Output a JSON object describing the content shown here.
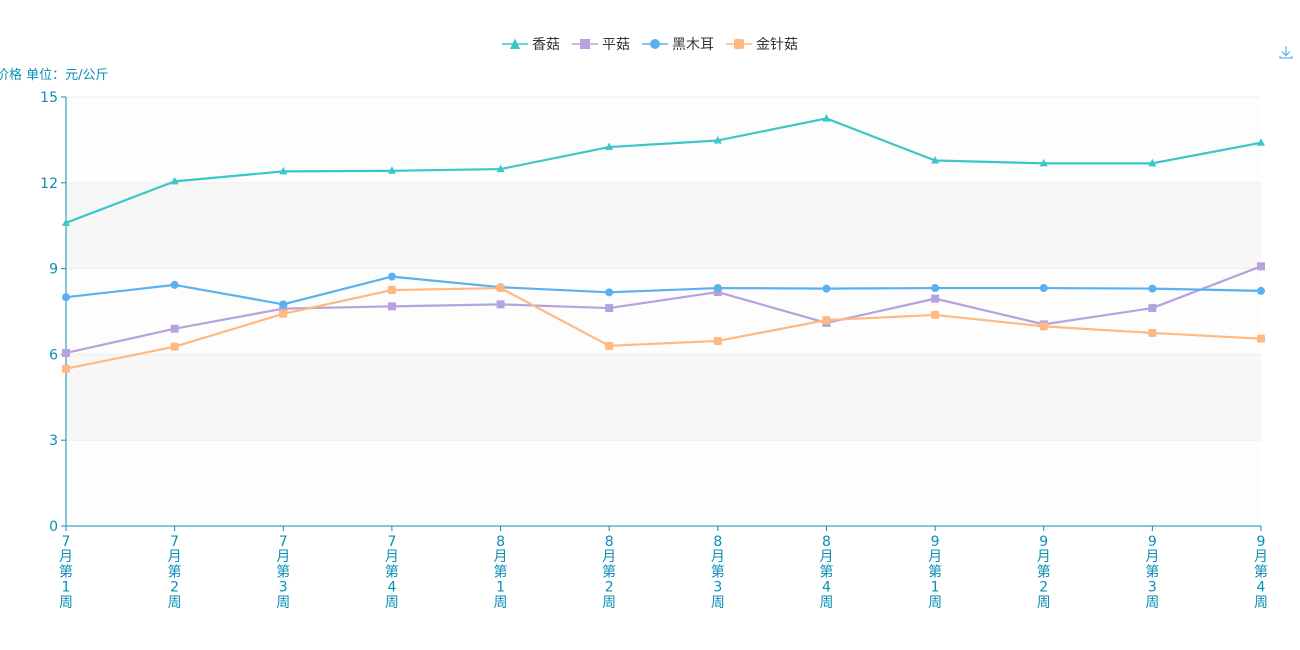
{
  "toolbox": {
    "download_icon": "download-icon"
  },
  "chart_data": {
    "type": "line",
    "ylabel": "价格 单位：元/公斤",
    "ylim": [
      0,
      15
    ],
    "yticks": [
      0,
      3,
      6,
      9,
      12,
      15
    ],
    "grid": true,
    "legend_position": "top-center",
    "categories": [
      "7月第1周",
      "7月第2周",
      "7月第3周",
      "7月第4周",
      "8月第1周",
      "8月第2周",
      "8月第3周",
      "8月第4周",
      "9月第1周",
      "9月第2周",
      "9月第3周",
      "9月第4周"
    ],
    "series": [
      {
        "name": "香菇",
        "color": "#3cc6c8",
        "marker": "triangle",
        "values": [
          10.6,
          12.05,
          12.4,
          12.42,
          12.48,
          13.25,
          13.48,
          14.25,
          12.78,
          12.68,
          12.68,
          13.4
        ]
      },
      {
        "name": "平菇",
        "color": "#b6a2de",
        "marker": "square",
        "values": [
          6.05,
          6.9,
          7.6,
          7.68,
          7.75,
          7.62,
          8.18,
          7.1,
          7.95,
          7.05,
          7.62,
          9.08
        ]
      },
      {
        "name": "黑木耳",
        "color": "#5ab1ef",
        "marker": "circle",
        "values": [
          8.0,
          8.43,
          7.75,
          8.72,
          8.35,
          8.17,
          8.32,
          8.3,
          8.32,
          8.32,
          8.3,
          8.22
        ]
      },
      {
        "name": "金针菇",
        "color": "#ffb980",
        "marker": "roundrect",
        "values": [
          5.5,
          6.27,
          7.42,
          8.25,
          8.32,
          6.3,
          6.47,
          7.2,
          7.38,
          6.98,
          6.75,
          6.55
        ]
      }
    ]
  }
}
